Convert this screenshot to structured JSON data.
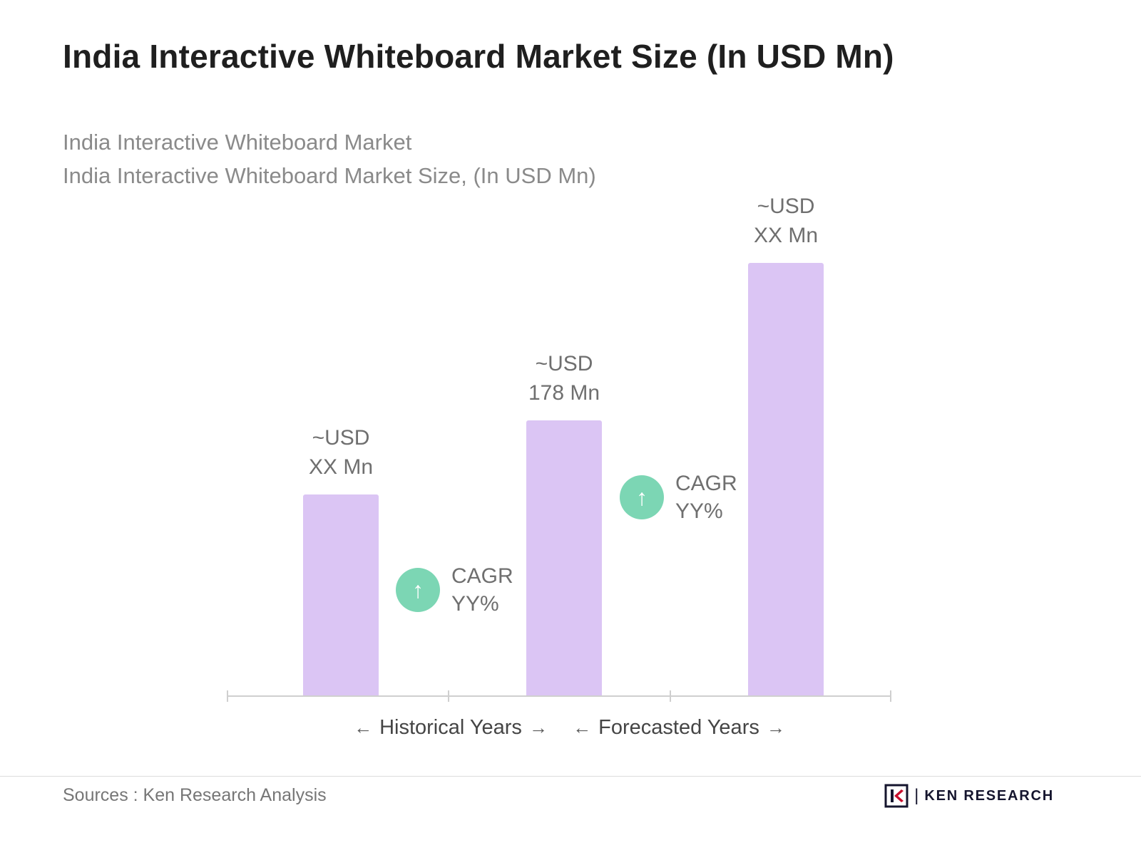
{
  "header": {
    "title": "India Interactive Whiteboard Market Size (In USD Mn)",
    "subtitle_line1": "India Interactive Whiteboard Market",
    "subtitle_line2": "India Interactive Whiteboard Market Size, (In USD Mn)"
  },
  "chart_data": {
    "type": "bar",
    "categories": [
      "",
      "",
      ""
    ],
    "values": [
      130,
      178,
      280
    ],
    "values_note": "values estimated from relative bar heights; only middle bar labeled 178",
    "value_labels": [
      "~USD\nXX Mn",
      "~USD\n178 Mn",
      "~USD\nXX Mn"
    ],
    "ylim": [
      0,
      300
    ],
    "grid": false,
    "legend": false,
    "bar_color": "#dbc5f4",
    "annotations": [
      {
        "text": "CAGR\nYY%",
        "icon": "up-arrow-circle-icon",
        "between": "bar1-bar2"
      },
      {
        "text": "CAGR\nYY%",
        "icon": "up-arrow-circle-icon",
        "between": "bar2-bar3"
      }
    ],
    "x_group_labels": [
      {
        "text": "Historical Years"
      },
      {
        "text": "Forecasted Years"
      }
    ]
  },
  "icons": {
    "left_arrow": "←",
    "right_arrow": "→",
    "up_arrow": "↑"
  },
  "colors": {
    "bar": "#dbc5f4",
    "cagr_badge": "#7cd6b4",
    "axis": "#cfcfcf",
    "brand_dark": "#15152e",
    "brand_red": "#c8102e"
  },
  "footer": {
    "sources": "Sources : Ken Research Analysis",
    "brand": "KEN RESEARCH"
  }
}
